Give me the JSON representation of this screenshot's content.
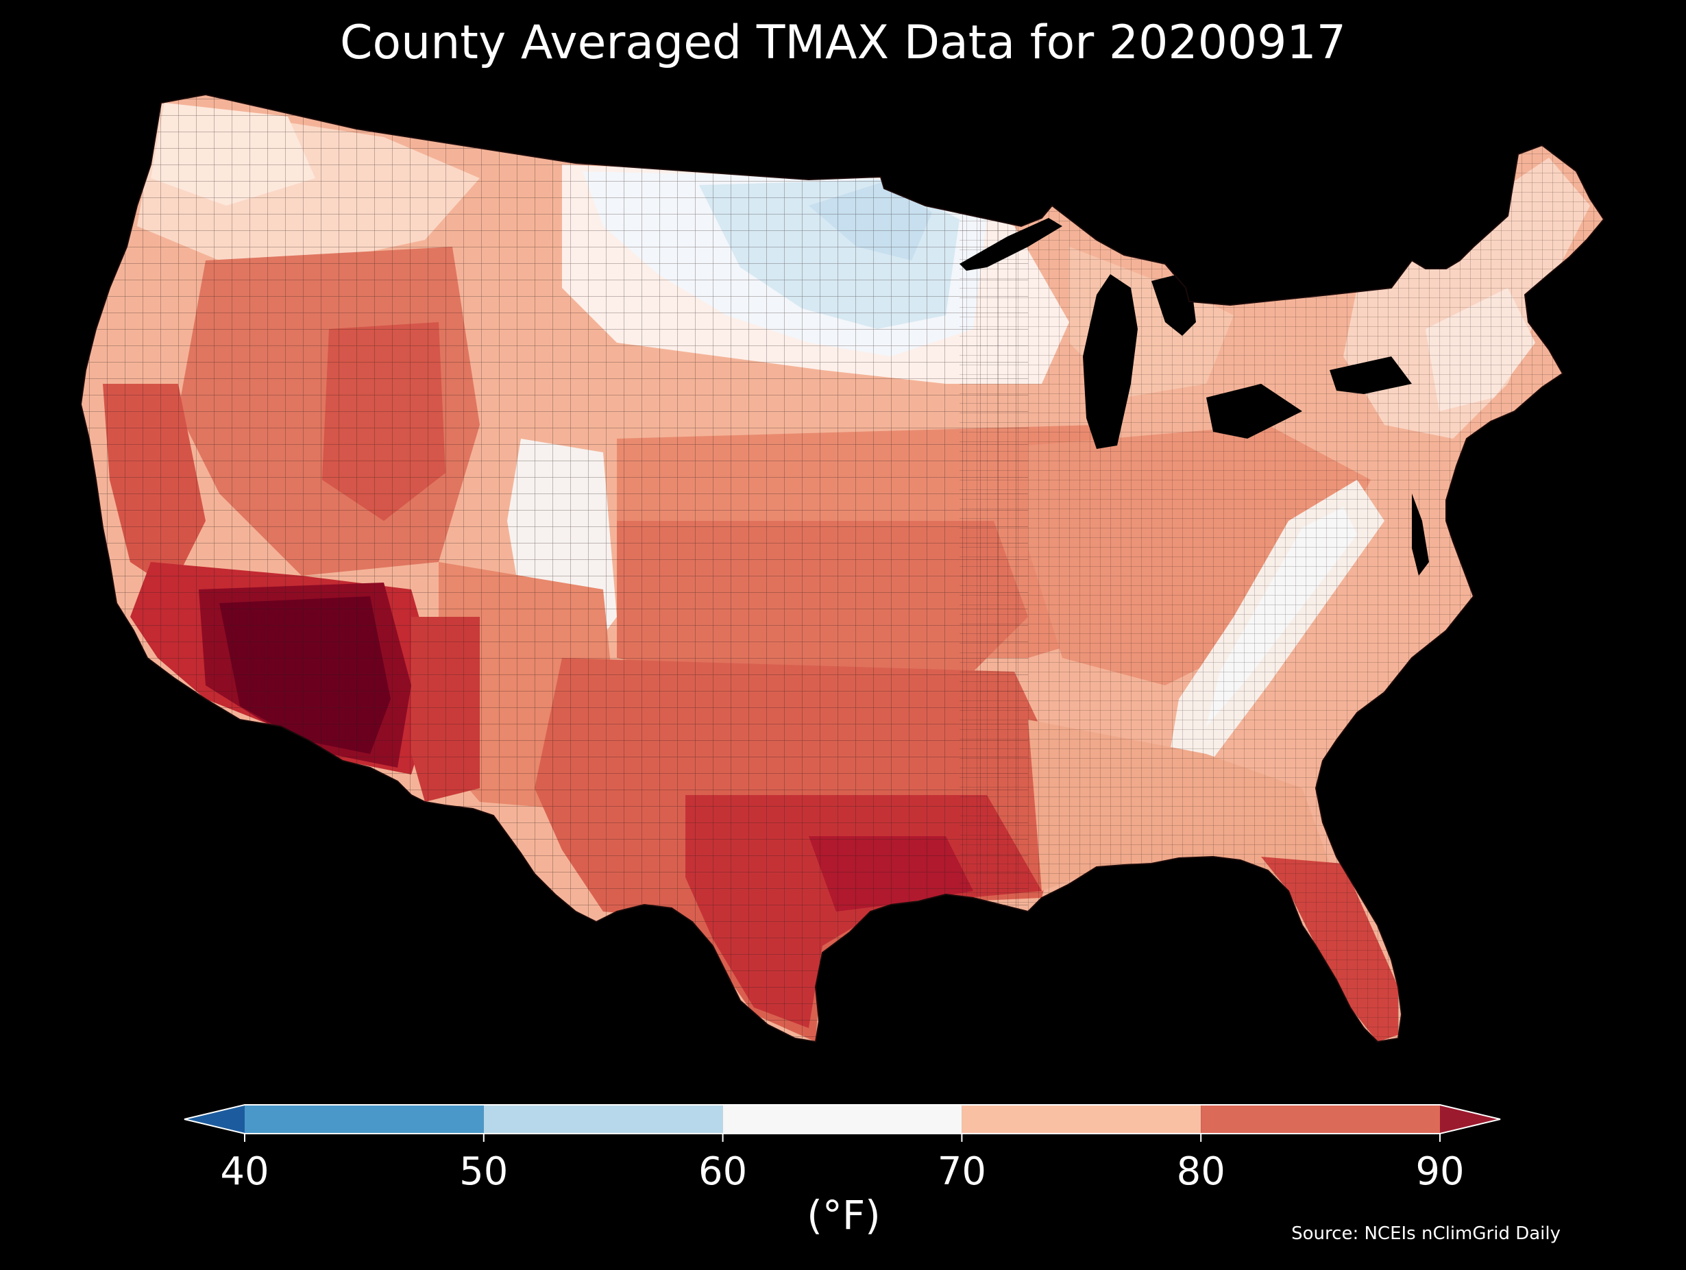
{
  "map": {
    "title": "County Averaged TMAX Data for 20200917",
    "source": "Source: NCEIs nClimGrid Daily",
    "colorbar": {
      "unit": "(°F)",
      "ticks": [
        "40",
        "50",
        "60",
        "70",
        "80",
        "90"
      ],
      "bins": [
        {
          "from": 40,
          "to": 50,
          "color": "#4a98c9"
        },
        {
          "from": 50,
          "to": 60,
          "color": "#b7d8ea"
        },
        {
          "from": 60,
          "to": 70,
          "color": "#f7f7f7"
        },
        {
          "from": 70,
          "to": 80,
          "color": "#f9c0a4"
        },
        {
          "from": 80,
          "to": 90,
          "color": "#dc6a58"
        }
      ],
      "under_color": "#1c5c9e",
      "over_color": "#9b1a2e",
      "extend": "both"
    },
    "colors": {
      "background": "#000000",
      "county_border": "#2a1a1a",
      "hottest": "#6b001e",
      "coolest": "#d3e7f2"
    }
  }
}
